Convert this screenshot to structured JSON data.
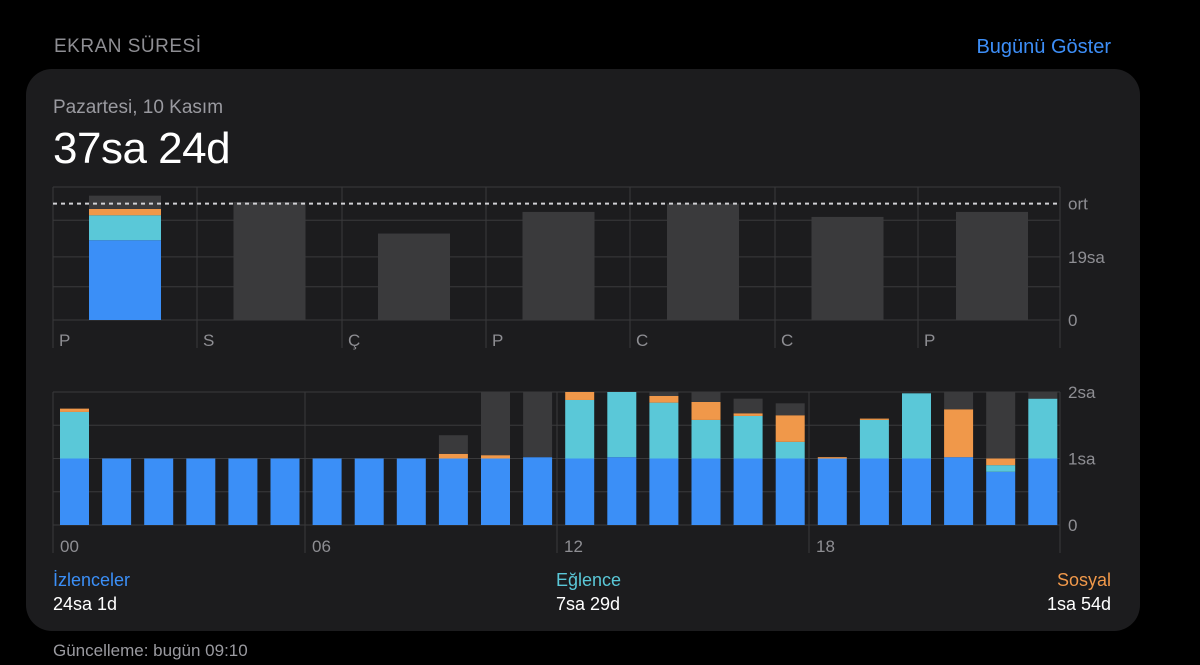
{
  "header": {
    "section_title": "EKRAN SÜRESİ",
    "show_today_label": "Bugünü Göster"
  },
  "summary": {
    "date_label": "Pazartesi, 10 Kasım",
    "total": "37sa 24d"
  },
  "colors": {
    "izlenceler": "#3b8ff7",
    "eglence": "#5ac8d8",
    "sosyal": "#f0984a",
    "other": "#3a3a3c",
    "grid": "#3a3a3c",
    "axis_text": "#8e8e93"
  },
  "chart_data": [
    {
      "type": "bar",
      "title": "",
      "categories": [
        "P",
        "S",
        "Ç",
        "P",
        "C",
        "C",
        "P"
      ],
      "y_unit": "hours",
      "ylim": [
        0,
        40
      ],
      "y_ticks": [
        {
          "value": 0,
          "label": "0"
        },
        {
          "value": 19,
          "label": "19sa"
        }
      ],
      "average": {
        "value": 35,
        "label": "ort"
      },
      "selected_index": 0,
      "series": [
        {
          "name": "İzlenceler",
          "values": [
            24.0,
            0,
            0,
            0,
            0,
            0,
            0
          ]
        },
        {
          "name": "Eğlence",
          "values": [
            7.5,
            0,
            0,
            0,
            0,
            0,
            0
          ]
        },
        {
          "name": "Sosyal",
          "values": [
            1.9,
            0,
            0,
            0,
            0,
            0,
            0
          ]
        },
        {
          "values": [
            4.0,
            35.5,
            26.0,
            32.5,
            35.0,
            31.0,
            32.5
          ]
        }
      ]
    },
    {
      "type": "bar",
      "title": "",
      "x": [
        0,
        1,
        2,
        3,
        4,
        5,
        6,
        7,
        8,
        9,
        10,
        11,
        12,
        13,
        14,
        15,
        16,
        17,
        18,
        19,
        20,
        21,
        22,
        23
      ],
      "x_tick_labels": [
        {
          "hour": 0,
          "label": "00"
        },
        {
          "hour": 6,
          "label": "06"
        },
        {
          "hour": 12,
          "label": "12"
        },
        {
          "hour": 18,
          "label": "18"
        }
      ],
      "y_unit": "hours",
      "ylim": [
        0,
        2
      ],
      "y_ticks": [
        {
          "value": 0,
          "label": "0"
        },
        {
          "value": 1,
          "label": "1sa"
        },
        {
          "value": 2,
          "label": "2sa"
        }
      ],
      "series": [
        {
          "name": "İzlenceler",
          "values": [
            1.0,
            1.0,
            1.0,
            1.0,
            1.0,
            1.0,
            1.0,
            1.0,
            1.0,
            1.0,
            1.0,
            1.02,
            1.0,
            1.02,
            1.0,
            1.0,
            1.0,
            1.0,
            1.0,
            1.0,
            1.0,
            1.02,
            0.8,
            1.0
          ]
        },
        {
          "name": "Eğlence",
          "values": [
            0.7,
            0,
            0,
            0,
            0,
            0,
            0,
            0,
            0,
            0,
            0,
            0,
            0.88,
            0.98,
            0.84,
            0.58,
            0.64,
            0.25,
            0,
            0.58,
            0.98,
            0,
            0.1,
            0.9
          ]
        },
        {
          "name": "Sosyal",
          "values": [
            0.05,
            0,
            0,
            0,
            0,
            0,
            0,
            0,
            0,
            0.07,
            0.05,
            0,
            0.12,
            0,
            0.1,
            0.27,
            0.04,
            0.4,
            0.02,
            0.02,
            0,
            0.72,
            0.1,
            0
          ]
        },
        {
          "values": [
            0,
            0,
            0,
            0,
            0,
            0,
            0,
            0,
            0,
            0.28,
            0.95,
            0.98,
            0,
            0,
            0.06,
            0.15,
            0.22,
            0.18,
            0,
            0,
            0,
            0.26,
            1.0,
            0.1
          ]
        }
      ]
    }
  ],
  "legend": [
    {
      "name": "İzlenceler",
      "value": "24sa 1d"
    },
    {
      "name": "Eğlence",
      "value": "7sa 29d"
    },
    {
      "name": "Sosyal",
      "value": "1sa 54d"
    }
  ],
  "footer": {
    "updated_label": "Güncelleme: bugün 09:10"
  }
}
